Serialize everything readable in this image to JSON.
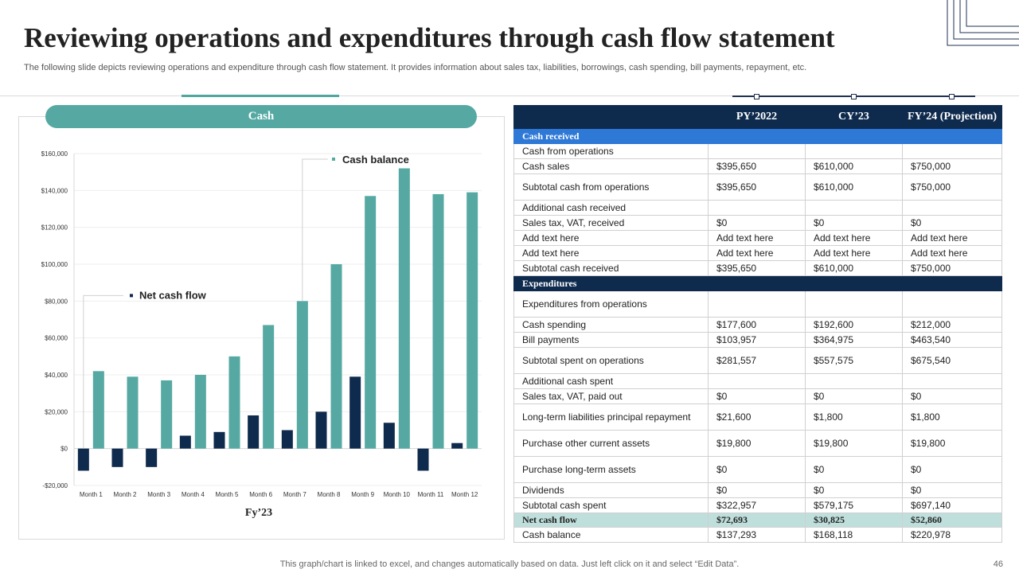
{
  "slide": {
    "title": "Reviewing operations and expenditures through cash flow statement",
    "subtitle": "The following slide depicts reviewing operations and expenditure through cash flow statement. It provides information about sales tax, liabilities, borrowings, cash spending, bill payments, repayment, etc.",
    "footer_note": "This graph/chart is linked to excel,  and changes automatically based on data. Just left click on it and select “Edit Data”.",
    "page_number": "46"
  },
  "colors": {
    "teal": "#55a9a2",
    "navy": "#0e2a4d",
    "blue": "#2e78d6",
    "light_teal": "#bfdfdc"
  },
  "chart_data": {
    "type": "bar",
    "title": "Cash",
    "xlabel": "Fy’23",
    "ylabel": "",
    "categories": [
      "Month 1",
      "Month 2",
      "Month 3",
      "Month 4",
      "Month 5",
      "Month 6",
      "Month 7",
      "Month 8",
      "Month 9",
      "Month 10",
      "Month 11",
      "Month 12"
    ],
    "series": [
      {
        "name": "Net cash flow",
        "color": "#0e2a4d",
        "values": [
          -12000,
          -10000,
          -10000,
          7000,
          9000,
          18000,
          10000,
          20000,
          39000,
          14000,
          -12000,
          3000
        ]
      },
      {
        "name": "Cash balance",
        "color": "#55a9a2",
        "values": [
          42000,
          39000,
          37000,
          40000,
          50000,
          67000,
          80000,
          100000,
          137000,
          152000,
          138000,
          139000
        ]
      }
    ],
    "ylim": [
      -20000,
      160000
    ],
    "yticks": [
      -20000,
      0,
      20000,
      40000,
      60000,
      80000,
      100000,
      120000,
      140000,
      160000
    ],
    "ytick_labels": [
      "-$20,000",
      "$0",
      "$20,000",
      "$40,000",
      "$60,000",
      "$80,000",
      "$100,000",
      "$120,000",
      "$140,000",
      "$160,000"
    ],
    "grid": true,
    "legend": "callout labels inside plot"
  },
  "table": {
    "headers": [
      "",
      "PY’2022",
      "CY’23",
      "FY’24 (Projection)"
    ],
    "rows": [
      {
        "type": "section-blue",
        "cells": [
          "Cash received",
          "",
          "",
          ""
        ]
      },
      {
        "type": "normal",
        "cells": [
          "Cash from operations",
          "",
          "",
          ""
        ]
      },
      {
        "type": "normal",
        "cells": [
          "Cash sales",
          "$395,650",
          "$610,000",
          "$750,000"
        ]
      },
      {
        "type": "normal",
        "cells": [
          "Subtotal cash from operations",
          "$395,650",
          "$610,000",
          "$750,000"
        ]
      },
      {
        "type": "normal",
        "cells": [
          "Additional cash received",
          "",
          "",
          ""
        ]
      },
      {
        "type": "normal",
        "cells": [
          "Sales tax, VAT,  received",
          "$0",
          "$0",
          "$0"
        ]
      },
      {
        "type": "normal",
        "cells": [
          "Add text here",
          "Add text here",
          "Add text here",
          "Add text here"
        ]
      },
      {
        "type": "normal",
        "cells": [
          "Add text here",
          "Add text here",
          "Add text here",
          "Add text here"
        ]
      },
      {
        "type": "normal",
        "cells": [
          "Subtotal cash received",
          "$395,650",
          "$610,000",
          "$750,000"
        ]
      },
      {
        "type": "section-navy",
        "cells": [
          "Expenditures",
          "",
          "",
          ""
        ]
      },
      {
        "type": "normal",
        "cells": [
          "Expenditures from operations",
          "",
          "",
          ""
        ]
      },
      {
        "type": "normal",
        "cells": [
          "Cash spending",
          "$177,600",
          "$192,600",
          "$212,000"
        ]
      },
      {
        "type": "normal",
        "cells": [
          "Bill payments",
          "$103,957",
          "$364,975",
          "$463,540"
        ]
      },
      {
        "type": "normal",
        "cells": [
          "Subtotal spent on operations",
          "$281,557",
          "$557,575",
          "$675,540"
        ]
      },
      {
        "type": "normal",
        "cells": [
          "Additional cash spent",
          "",
          "",
          ""
        ]
      },
      {
        "type": "normal",
        "cells": [
          "Sales tax, VAT,  paid out",
          "$0",
          "$0",
          "$0"
        ]
      },
      {
        "type": "normal",
        "cells": [
          "Long-term liabilities principal repayment",
          "$21,600",
          "$1,800",
          "$1,800"
        ]
      },
      {
        "type": "normal",
        "cells": [
          "Purchase other current assets",
          "$19,800",
          "$19,800",
          "$19,800"
        ]
      },
      {
        "type": "normal",
        "cells": [
          "Purchase long-term assets",
          "$0",
          "$0",
          "$0"
        ]
      },
      {
        "type": "normal",
        "cells": [
          "Dividends",
          "$0",
          "$0",
          "$0"
        ]
      },
      {
        "type": "normal",
        "cells": [
          "Subtotal cash spent",
          "$322,957",
          "$579,175",
          "$697,140"
        ]
      },
      {
        "type": "net",
        "cells": [
          "Net cash flow",
          "$72,693",
          "$30,825",
          "$52,860"
        ]
      },
      {
        "type": "normal",
        "cells": [
          "Cash balance",
          "$137,293",
          "$168,118",
          "$220,978"
        ]
      }
    ]
  }
}
